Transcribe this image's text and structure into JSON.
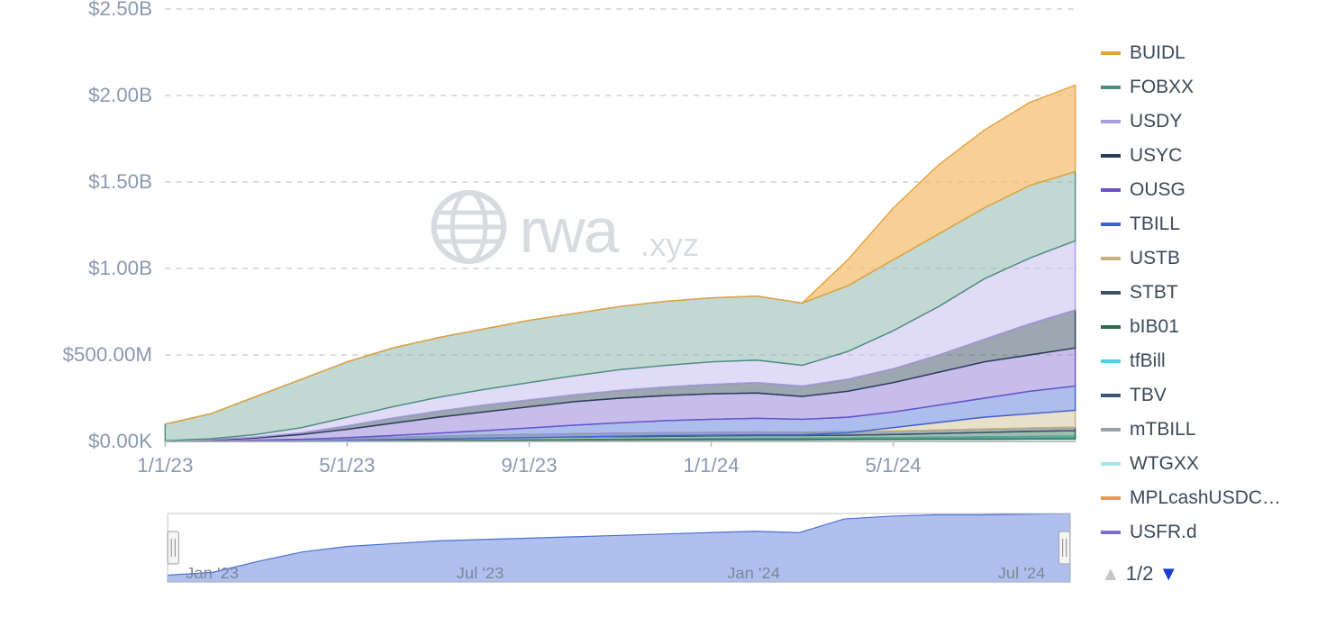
{
  "chart": {
    "type": "stacked-area",
    "background_color": "#ffffff",
    "grid_color": "#b9b9b9",
    "grid_dash": "6 6",
    "axis_color": "#b9b9b9",
    "tick_label_color": "#8a99b0",
    "tick_fontsize": 22,
    "watermark": {
      "text": "rwa",
      "suffix": ".xyz",
      "color": "#b8bec6",
      "opacity": 0.55
    },
    "y_axis": {
      "ticks": [
        {
          "v": 0,
          "label": "$0.00K"
        },
        {
          "v": 500000000,
          "label": "$500.00M"
        },
        {
          "v": 1000000000,
          "label": "$1.00B"
        },
        {
          "v": 1500000000,
          "label": "$1.50B"
        },
        {
          "v": 2000000000,
          "label": "$2.00B"
        },
        {
          "v": 2500000000,
          "label": "$2.50B"
        }
      ],
      "min": 0,
      "max": 2500000000
    },
    "x_axis": {
      "start": "2023-01-01",
      "end": "2024-09-01",
      "ticks": [
        {
          "t": 0.0,
          "label": "1/1/23"
        },
        {
          "t": 0.2,
          "label": "5/1/23"
        },
        {
          "t": 0.4,
          "label": "9/1/23"
        },
        {
          "t": 0.6,
          "label": "1/1/24"
        },
        {
          "t": 0.8,
          "label": "5/1/24"
        }
      ]
    },
    "series": [
      {
        "key": "USFR.d",
        "label": "USFR.d",
        "stroke": "#7c6dd1",
        "fill": "#7c6dd1",
        "fill_opacity": 0.55,
        "points": [
          0,
          0,
          0,
          0,
          0,
          0,
          0,
          0,
          0,
          0,
          0,
          0,
          0,
          0,
          0,
          0,
          0,
          0,
          0,
          0,
          0
        ]
      },
      {
        "key": "MPLcashUSDC",
        "label": "MPLcashUSDC…",
        "stroke": "#e99a3f",
        "fill": "#f2b46a",
        "fill_opacity": 0.6,
        "points": [
          0,
          0,
          0,
          0,
          0,
          0,
          0,
          0,
          0,
          0,
          0,
          0,
          0,
          0,
          0,
          0,
          0,
          0,
          0,
          0,
          0
        ]
      },
      {
        "key": "WTGXX",
        "label": "WTGXX",
        "stroke": "#a7e3ea",
        "fill": "#cdeef3",
        "fill_opacity": 0.6,
        "points": [
          0,
          0,
          0,
          0,
          2,
          3,
          4,
          5,
          6,
          7,
          8,
          9,
          10,
          10,
          10,
          11,
          12,
          14,
          16,
          18,
          20
        ]
      },
      {
        "key": "mTBILL",
        "label": "mTBILL",
        "stroke": "#9aa0a7",
        "fill": "#b9bec4",
        "fill_opacity": 0.6,
        "points": [
          0,
          0,
          0,
          0,
          0,
          2,
          4,
          6,
          8,
          10,
          12,
          14,
          16,
          18,
          18,
          20,
          22,
          24,
          26,
          28,
          30
        ]
      },
      {
        "key": "TBV",
        "label": "TBV",
        "stroke": "#3d5872",
        "fill": "#6a8099",
        "fill_opacity": 0.55,
        "points": [
          0,
          0,
          0,
          0,
          0,
          2,
          4,
          6,
          8,
          10,
          12,
          14,
          16,
          18,
          18,
          20,
          22,
          24,
          26,
          28,
          30
        ]
      },
      {
        "key": "tfBill",
        "label": "tfBill",
        "stroke": "#4fd0d8",
        "fill": "#8fe1e6",
        "fill_opacity": 0.6,
        "points": [
          0,
          0,
          0,
          0,
          2,
          4,
          5,
          6,
          7,
          8,
          9,
          10,
          10,
          11,
          11,
          12,
          12,
          13,
          13,
          14,
          15
        ]
      },
      {
        "key": "bIB01",
        "label": "bIB01",
        "stroke": "#2f6b4f",
        "fill": "#4a8a6b",
        "fill_opacity": 0.55,
        "points": [
          0,
          0,
          2,
          4,
          8,
          12,
          16,
          20,
          24,
          26,
          28,
          30,
          32,
          34,
          34,
          36,
          40,
          46,
          52,
          58,
          62
        ]
      },
      {
        "key": "STBT",
        "label": "STBT",
        "stroke": "#3b4f66",
        "fill": "#5b6f86",
        "fill_opacity": 0.55,
        "points": [
          2,
          4,
          8,
          12,
          18,
          24,
          30,
          36,
          40,
          44,
          48,
          50,
          52,
          54,
          52,
          56,
          60,
          66,
          72,
          78,
          82
        ]
      },
      {
        "key": "USTB",
        "label": "USTB",
        "stroke": "#c5b17f",
        "fill": "#ddd0ae",
        "fill_opacity": 0.65,
        "points": [
          0,
          0,
          0,
          2,
          6,
          10,
          14,
          18,
          22,
          26,
          30,
          34,
          36,
          38,
          38,
          50,
          80,
          110,
          140,
          160,
          180
        ]
      },
      {
        "key": "TBILL",
        "label": "TBILL",
        "stroke": "#3b62d4",
        "fill": "#6a87df",
        "fill_opacity": 0.55,
        "points": [
          0,
          2,
          6,
          12,
          22,
          34,
          48,
          62,
          78,
          94,
          108,
          120,
          128,
          134,
          128,
          140,
          170,
          210,
          250,
          290,
          320
        ]
      },
      {
        "key": "OUSG",
        "label": "OUSG",
        "stroke": "#6b52c9",
        "fill": "#8d7bd8",
        "fill_opacity": 0.5,
        "points": [
          2,
          8,
          20,
          40,
          70,
          105,
          140,
          170,
          200,
          230,
          250,
          265,
          275,
          280,
          260,
          290,
          340,
          400,
          460,
          500,
          540
        ]
      },
      {
        "key": "USYC",
        "label": "USYC",
        "stroke": "#2a3d52",
        "fill": "#4b5e73",
        "fill_opacity": 0.55,
        "points": [
          2,
          10,
          25,
          50,
          90,
          135,
          175,
          210,
          240,
          270,
          295,
          315,
          330,
          340,
          320,
          360,
          420,
          500,
          590,
          680,
          760
        ]
      },
      {
        "key": "USDY",
        "label": "USDY",
        "stroke": "#a79be2",
        "fill": "#c6bdf0",
        "fill_opacity": 0.55,
        "points": [
          4,
          15,
          40,
          80,
          140,
          200,
          255,
          300,
          340,
          380,
          415,
          440,
          460,
          470,
          440,
          520,
          640,
          780,
          940,
          1060,
          1160
        ]
      },
      {
        "key": "FOBXX",
        "label": "FOBXX",
        "stroke": "#4b8d7d",
        "fill": "#8fb9ae",
        "fill_opacity": 0.55,
        "points": [
          100,
          160,
          260,
          360,
          460,
          540,
          600,
          650,
          700,
          740,
          780,
          810,
          830,
          840,
          800,
          900,
          1050,
          1200,
          1350,
          1480,
          1560
        ]
      },
      {
        "key": "BUIDL",
        "label": "BUIDL",
        "stroke": "#e9a13c",
        "fill": "#f3bc6b",
        "fill_opacity": 0.7,
        "points": [
          100,
          160,
          260,
          360,
          460,
          540,
          600,
          650,
          700,
          740,
          780,
          810,
          830,
          840,
          800,
          1050,
          1350,
          1600,
          1800,
          1960,
          2060
        ]
      }
    ],
    "legend_order": [
      "BUIDL",
      "FOBXX",
      "USDY",
      "USYC",
      "OUSG",
      "TBILL",
      "USTB",
      "STBT",
      "bIB01",
      "tfBill",
      "TBV",
      "mTBILL",
      "WTGXX",
      "MPLcashUSDC",
      "USFR.d"
    ],
    "pager": {
      "page": "1/2"
    }
  },
  "mini": {
    "fill": "#6f8de0",
    "fill_opacity": 0.55,
    "stroke": "#4a6fd4",
    "ticks": [
      {
        "t": 0.02,
        "label": "Jan '23"
      },
      {
        "t": 0.32,
        "label": "Jul '23"
      },
      {
        "t": 0.62,
        "label": "Jan '24"
      },
      {
        "t": 0.92,
        "label": "Jul '24"
      }
    ],
    "points": [
      10,
      14,
      30,
      44,
      52,
      56,
      60,
      62,
      64,
      66,
      68,
      70,
      72,
      74,
      72,
      92,
      96,
      98,
      98,
      99,
      100
    ]
  }
}
